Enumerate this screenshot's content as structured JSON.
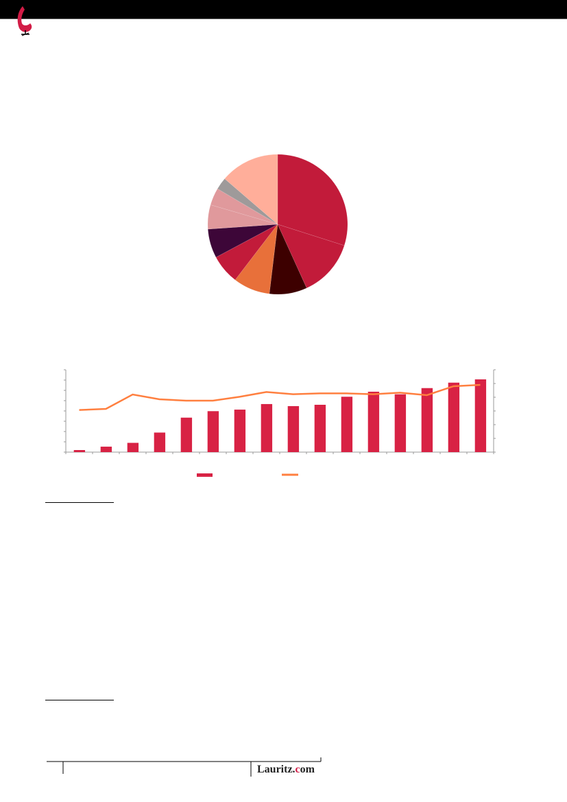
{
  "header": {
    "logo_icon": "egg-chair-logo-icon",
    "brand_color": "#D21C46"
  },
  "footer": {
    "logo_text_a": "Lauritz.",
    "logo_text_c": "c",
    "logo_text_b": "om"
  },
  "chart_data": [
    {
      "type": "pie",
      "values": [
        29.9,
        13.3,
        8.7,
        8.5,
        6.8,
        6.7,
        5.6,
        4.0,
        2.8,
        13.7
      ],
      "colors": [
        "#C21B3A",
        "#C21B3A",
        "#3D0000",
        "#E8703A",
        "#C21B3A",
        "#3D0638",
        "#E0999C",
        "#E0999C",
        "#9E9A9A",
        "#FFAE9A"
      ],
      "start": "top",
      "direction": "clockwise"
    },
    {
      "type": "bar+line",
      "categories_count": 16,
      "bars": {
        "color": "#D82244",
        "axis": "left",
        "values": [
          0.2,
          0.53,
          0.9,
          1.9,
          3.35,
          3.98,
          4.13,
          4.67,
          4.47,
          4.6,
          5.38,
          5.87,
          5.62,
          6.22,
          6.75,
          7.07
        ]
      },
      "line": {
        "color": "#FF7F3F",
        "axis": "right",
        "values": [
          3.07,
          3.15,
          4.2,
          3.85,
          3.75,
          3.75,
          4.03,
          4.38,
          4.22,
          4.28,
          4.28,
          4.22,
          4.33,
          4.15,
          4.8,
          4.9
        ]
      },
      "ylim_left": [
        0,
        8
      ],
      "ylim_right": [
        0,
        6
      ],
      "grid": false,
      "legend": "bottom"
    }
  ]
}
